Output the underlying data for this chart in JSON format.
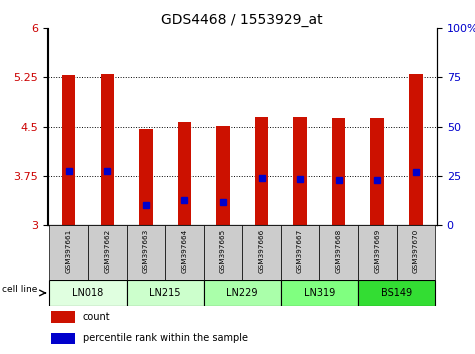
{
  "title": "GDS4468 / 1553929_at",
  "samples": [
    "GSM397661",
    "GSM397662",
    "GSM397663",
    "GSM397664",
    "GSM397665",
    "GSM397666",
    "GSM397667",
    "GSM397668",
    "GSM397669",
    "GSM397670"
  ],
  "bar_heights": [
    5.29,
    5.31,
    4.47,
    4.57,
    4.51,
    4.65,
    4.65,
    4.63,
    4.63,
    5.31
  ],
  "percentile_values": [
    3.82,
    3.82,
    3.3,
    3.38,
    3.35,
    3.71,
    3.7,
    3.68,
    3.68,
    3.8
  ],
  "cell_line_labels": [
    "LN018",
    "LN215",
    "LN229",
    "LN319",
    "BS149"
  ],
  "cell_line_colors": [
    "#e0ffe0",
    "#ccffcc",
    "#aaffaa",
    "#80ff80",
    "#33dd33"
  ],
  "cell_line_spans": [
    [
      0,
      2
    ],
    [
      2,
      4
    ],
    [
      4,
      6
    ],
    [
      6,
      8
    ],
    [
      8,
      10
    ]
  ],
  "bar_color": "#cc1100",
  "marker_color": "#0000cc",
  "ylim_left": [
    3,
    6
  ],
  "ylim_right": [
    0,
    100
  ],
  "yticks_left": [
    3,
    3.75,
    4.5,
    5.25,
    6
  ],
  "yticks_right": [
    0,
    25,
    50,
    75,
    100
  ],
  "plot_bg_color": "#ffffff",
  "tick_label_color_left": "#cc0000",
  "tick_label_color_right": "#0000cc",
  "bar_width": 0.35,
  "sample_bg_color": "#cccccc",
  "legend_count_color": "#cc1100",
  "legend_pct_color": "#0000cc",
  "marker_size": 4
}
